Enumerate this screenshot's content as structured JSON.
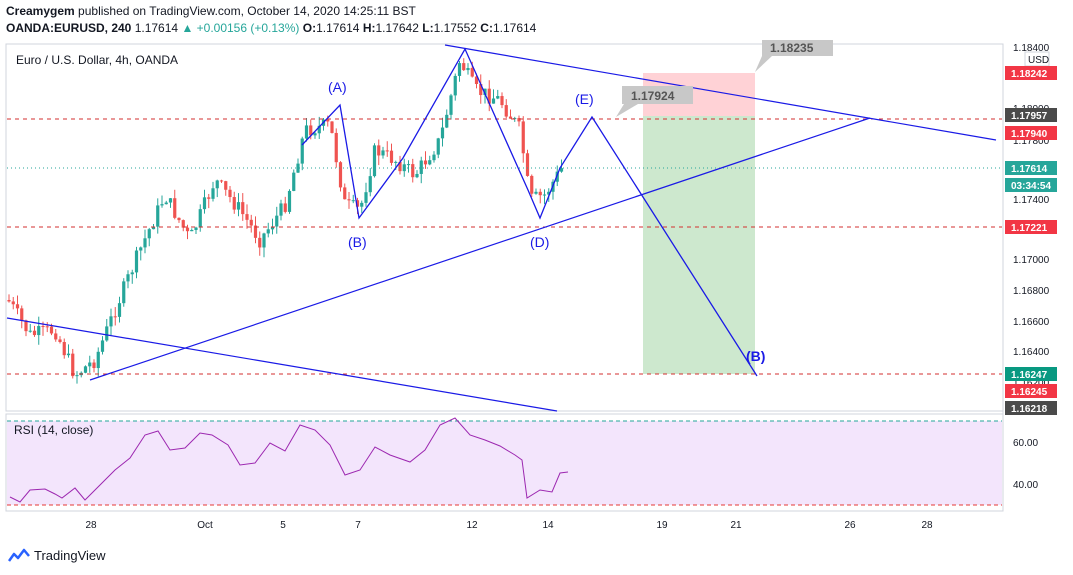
{
  "header": {
    "line1_author": "Creamygem",
    "line1_rest": "published on TradingView.com, October 14, 2020 14:25:11 BST",
    "symbol": "OANDA:EURUSD, 240",
    "last": "1.17614",
    "change": "▲ +0.00156 (+0.13%)",
    "o_label": "O:",
    "o": "1.17614",
    "h_label": "H:",
    "h": "1.17642",
    "l_label": "L:",
    "l": "1.17552",
    "c_label": "C:",
    "c": "1.17614"
  },
  "footer": {
    "brand": "TradingView",
    "logo_icon": "tradingview-logo-icon"
  },
  "chart_data": [
    {
      "type": "candlestick",
      "title": "Euro / U.S. Dollar, 4h, OANDA",
      "currency": "USD",
      "ylim": [
        1.1621,
        1.1843
      ],
      "yticks": [
        "1.18400",
        "1.18000",
        "1.17800",
        "1.17600",
        "1.17400",
        "1.17200",
        "1.17000",
        "1.16800",
        "1.16600",
        "1.16400",
        "1.16200"
      ],
      "xticks": [
        "28",
        "Oct",
        "5",
        "7",
        "12",
        "14",
        "19",
        "21",
        "26",
        "28"
      ],
      "x_positions": [
        91,
        205,
        283,
        358,
        472,
        548,
        662,
        736,
        850,
        927
      ],
      "price_tags": [
        {
          "value": "1.18242",
          "color": "#f23645"
        },
        {
          "value": "1.17957",
          "color": "#4a4a4a"
        },
        {
          "value": "1.17940",
          "color": "#f23645"
        },
        {
          "value": "1.17614",
          "color": "#26a69a"
        },
        {
          "value": "03:34:54",
          "color": "#26a69a"
        },
        {
          "value": "1.17221",
          "color": "#f23645"
        },
        {
          "value": "1.16247",
          "color": "#089981"
        },
        {
          "value": "1.16245",
          "color": "#f23645"
        },
        {
          "value": "1.16218",
          "color": "#4a4a4a"
        }
      ],
      "horizontal_levels": [
        1.17957,
        1.17221,
        1.16247
      ],
      "wave_labels": [
        "(A)",
        "(B)",
        "(D)",
        "(E)"
      ],
      "target_label": "(B)",
      "callouts": [
        "1.18235",
        "1.17924"
      ],
      "colors": {
        "up": "#26a69a",
        "down": "#ef5350",
        "pattern": "#1a1ae6",
        "level": "#d32f2f",
        "target_zone": "#c8e6c9",
        "stop_zone": "#ffcdd2"
      }
    },
    {
      "type": "line",
      "title": "RSI (14, close)",
      "ylim": [
        20,
        80
      ],
      "yticks": [
        "60.00",
        "40.00"
      ],
      "bands": [
        70,
        30
      ],
      "colors": {
        "line": "#9c27b0",
        "band": "#f3e5fc",
        "bandline": "#26a69a"
      }
    }
  ]
}
